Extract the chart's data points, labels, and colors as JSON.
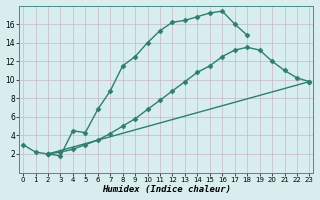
{
  "xlabel": "Humidex (Indice chaleur)",
  "bg_color": "#d8eeee",
  "grid_color": "#c0dcdc",
  "line_color": "#2e7e6e",
  "line1_x": [
    0,
    1,
    2,
    3,
    4,
    5,
    6,
    7,
    8,
    9,
    10,
    11,
    12,
    13,
    14,
    15,
    16,
    17,
    18
  ],
  "line1_y": [
    3.0,
    2.2,
    2.0,
    1.8,
    4.5,
    4.3,
    6.8,
    8.8,
    11.5,
    12.5,
    14.0,
    15.3,
    16.2,
    16.4,
    16.8,
    17.2,
    17.4,
    16.0,
    14.8
  ],
  "line2_x": [
    2,
    3,
    4,
    5,
    6,
    7,
    8,
    9,
    10,
    11,
    12,
    13,
    14,
    15,
    16,
    17,
    18,
    19,
    20,
    21,
    22,
    23
  ],
  "line2_y": [
    2.0,
    2.2,
    2.5,
    3.0,
    3.5,
    4.2,
    5.0,
    5.8,
    6.8,
    7.8,
    8.8,
    9.8,
    10.8,
    11.5,
    12.5,
    13.2,
    13.5,
    13.2,
    12.0,
    11.0,
    10.2,
    9.8
  ],
  "line3_x": [
    2,
    23
  ],
  "line3_y": [
    2.0,
    9.8
  ],
  "xlim": [
    -0.3,
    23.3
  ],
  "ylim": [
    0,
    18
  ],
  "yticks": [
    2,
    4,
    6,
    8,
    10,
    12,
    14,
    16
  ],
  "xticks": [
    0,
    1,
    2,
    3,
    4,
    5,
    6,
    7,
    8,
    9,
    10,
    11,
    12,
    13,
    14,
    15,
    16,
    17,
    18,
    19,
    20,
    21,
    22,
    23
  ],
  "marker": "D",
  "marker_size": 2.5,
  "line_width": 1.0,
  "font_size_tick": 5.5,
  "font_size_label": 6.5
}
